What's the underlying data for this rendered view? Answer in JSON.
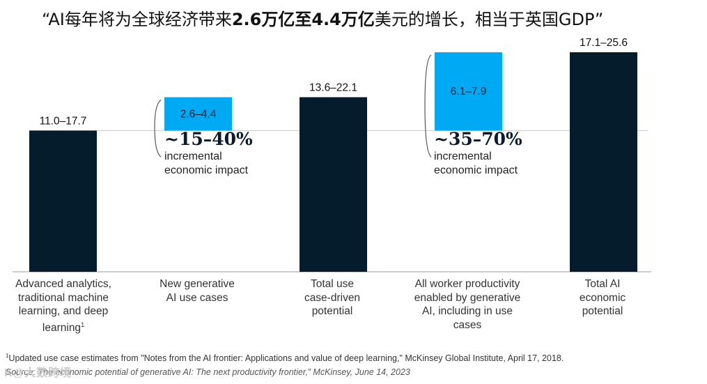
{
  "title": {
    "prefix": "“AI每年将为全球经济带来",
    "bold1": "2.6万亿至4.4万亿",
    "suffix": "美元的增长，相当于英国GDP”"
  },
  "chart_data": {
    "type": "bar",
    "subtype": "waterfall",
    "ylim": [
      0,
      25.6
    ],
    "categories": [
      "Advanced analytics, traditional machine learning, and deep learning",
      "New generative AI use cases",
      "Total use case-driven potential",
      "All worker productivity enabled by generative AI, including in use cases",
      "Total AI economic potential"
    ],
    "bars": [
      {
        "label": "11.0–17.7",
        "low": 11.0,
        "high": 17.7,
        "base": 0,
        "top": 11.0,
        "kind": "total",
        "color": "#051c2c"
      },
      {
        "label": "2.6–4.4",
        "low": 2.6,
        "high": 4.4,
        "base": 11.0,
        "top": 13.6,
        "kind": "increment",
        "color": "#00a9f4"
      },
      {
        "label": "13.6–22.1",
        "low": 13.6,
        "high": 22.1,
        "base": 0,
        "top": 13.6,
        "kind": "total",
        "color": "#051c2c"
      },
      {
        "label": "6.1–7.9",
        "low": 6.1,
        "high": 7.9,
        "base": 11.0,
        "top": 17.1,
        "kind": "increment",
        "color": "#00a9f4"
      },
      {
        "label": "17.1–25.6",
        "low": 17.1,
        "high": 25.6,
        "base": 0,
        "top": 17.1,
        "kind": "total",
        "color": "#051c2c"
      }
    ],
    "annotations": [
      {
        "pct": "~15–40%",
        "line1": "incremental",
        "line2": "economic impact",
        "bar": 1
      },
      {
        "pct": "~35–70%",
        "line1": "incremental",
        "line2": "economic impact",
        "bar": 3
      }
    ]
  },
  "labels": {
    "cat0": [
      "Advanced analytics,",
      "traditional machine",
      "learning, and deep",
      "learning"
    ],
    "cat0_sup": "1",
    "cat1": [
      "New generative",
      "AI use cases"
    ],
    "cat2": [
      "Total use",
      "case-driven",
      "potential"
    ],
    "cat3": [
      "All worker productivity",
      "enabled by generative",
      "AI, including in use",
      "cases"
    ],
    "cat4": [
      "Total AI",
      "economic",
      "potential"
    ]
  },
  "footnote": {
    "sup": "1",
    "text": "Updated use case estimates from \"Notes from the AI frontier: Applications and value of deep learning,\" McKinsey Global Institute, April 17, 2018."
  },
  "source": "Source: The economic potential of generative AI: The next productivity frontier,” McKinsey, June 14, 2023",
  "watermark": "K@大数跨境"
}
